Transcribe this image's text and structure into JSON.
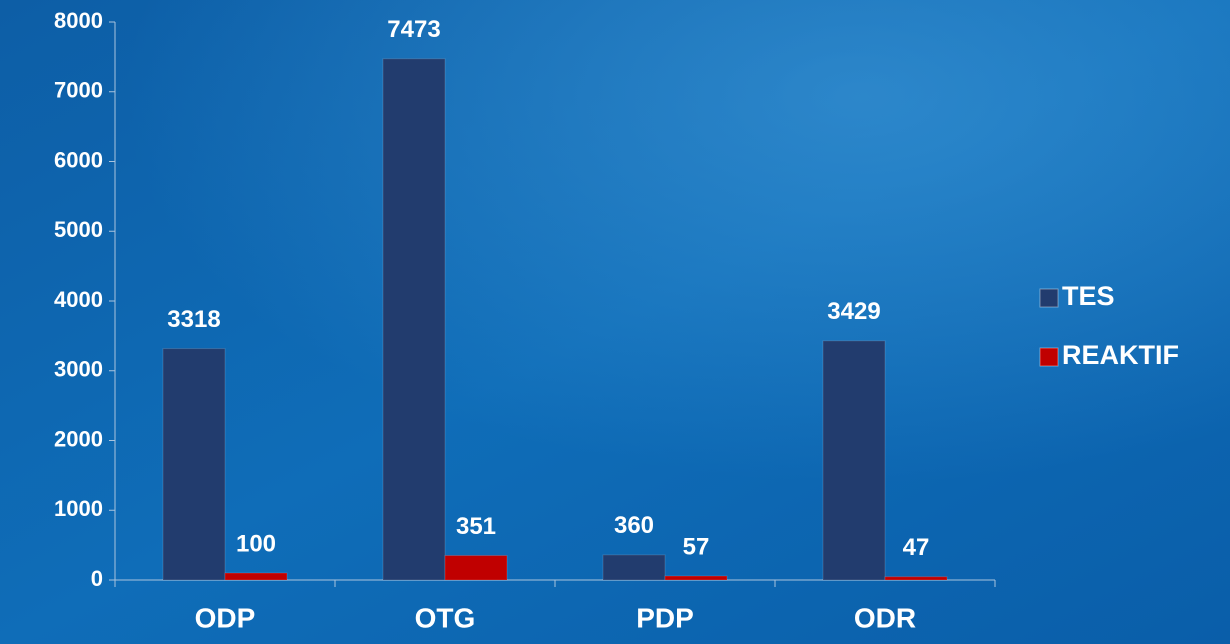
{
  "chart_data": {
    "type": "bar",
    "categories": [
      "ODP",
      "OTG",
      "PDP",
      "ODR"
    ],
    "series": [
      {
        "name": "TES",
        "color": "#223c6e",
        "values": [
          3318,
          7473,
          360,
          3429
        ]
      },
      {
        "name": "REAKTIF",
        "color": "#c00000",
        "values": [
          100,
          351,
          57,
          47
        ]
      }
    ],
    "ylim": [
      0,
      8000
    ],
    "yticks": [
      0,
      1000,
      2000,
      3000,
      4000,
      5000,
      6000,
      7000,
      8000
    ],
    "legend": "right"
  }
}
